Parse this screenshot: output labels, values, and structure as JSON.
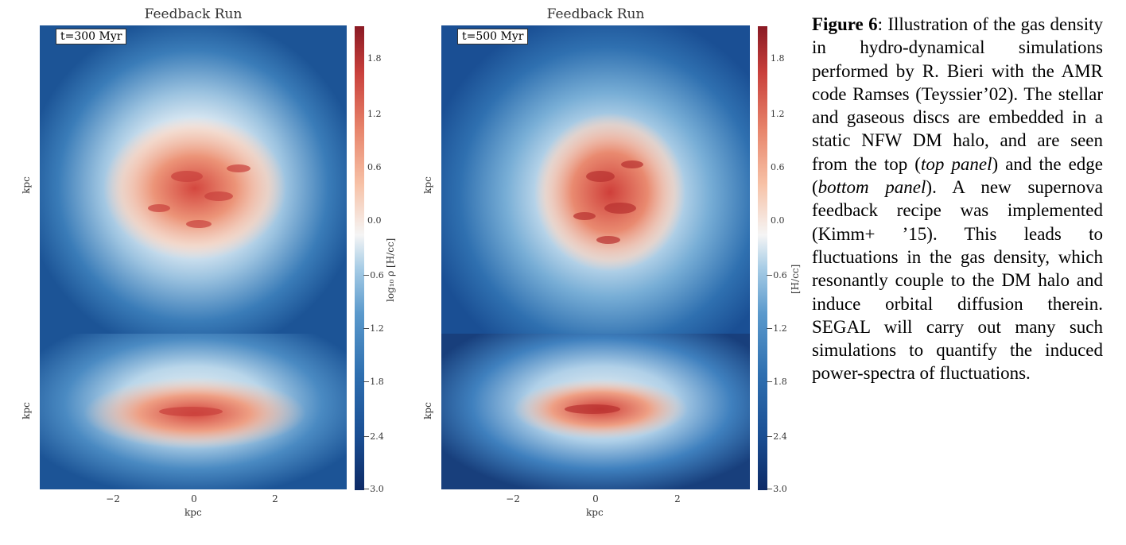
{
  "panels": [
    {
      "title": "Feedback Run",
      "time_label": "t=300 Myr",
      "ylabel_top": "kpc",
      "ylabel_bottom": "kpc",
      "xlabel": "kpc",
      "xticks": [
        "−2",
        "0",
        "2"
      ],
      "colorbar_ticks": [
        "1.8",
        "1.2",
        "0.6",
        "0.0",
        "−0.6",
        "−1.2",
        "−1.8",
        "−2.4",
        "−3.0"
      ],
      "colorbar_label": "log₁₀ ρ  [H/cc]"
    },
    {
      "title": "Feedback Run",
      "time_label": "t=500 Myr",
      "ylabel_top": "kpc",
      "ylabel_bottom": "kpc",
      "xlabel": "kpc",
      "xticks": [
        "−2",
        "0",
        "2"
      ],
      "colorbar_ticks": [
        "1.8",
        "1.2",
        "0.6",
        "0.0",
        "−0.6",
        "−1.2",
        "−1.8",
        "−2.4",
        "−3.0"
      ],
      "colorbar_label": "[H/cc]"
    }
  ],
  "caption": {
    "figure_label": "Figure 6",
    "text_1": ": Illustration of the gas density in hydro-dynamical simulations performed by R. Bieri with the AMR code Ramses (Teyssier’02). The stellar and gaseous discs are embedded in a static NFW DM halo, and are seen from the top (",
    "top_panel": "top panel",
    "text_2": ") and the edge (",
    "bottom_panel": "bottom panel",
    "text_3": "). A new supernova feedback recipe was implemented (Kimm+ ’15). This leads to fluctuations in the gas density, which resonantly couple to the DM halo and induce orbital diffusion therein. SEGAL will carry out many such simulations to quantify the induced power-spectra of fluctuations."
  },
  "colors": {
    "deep_blue": "#1a4f94",
    "light_blue": "#a8cde6",
    "white": "#f5f5f5",
    "red": "#c9403c"
  }
}
